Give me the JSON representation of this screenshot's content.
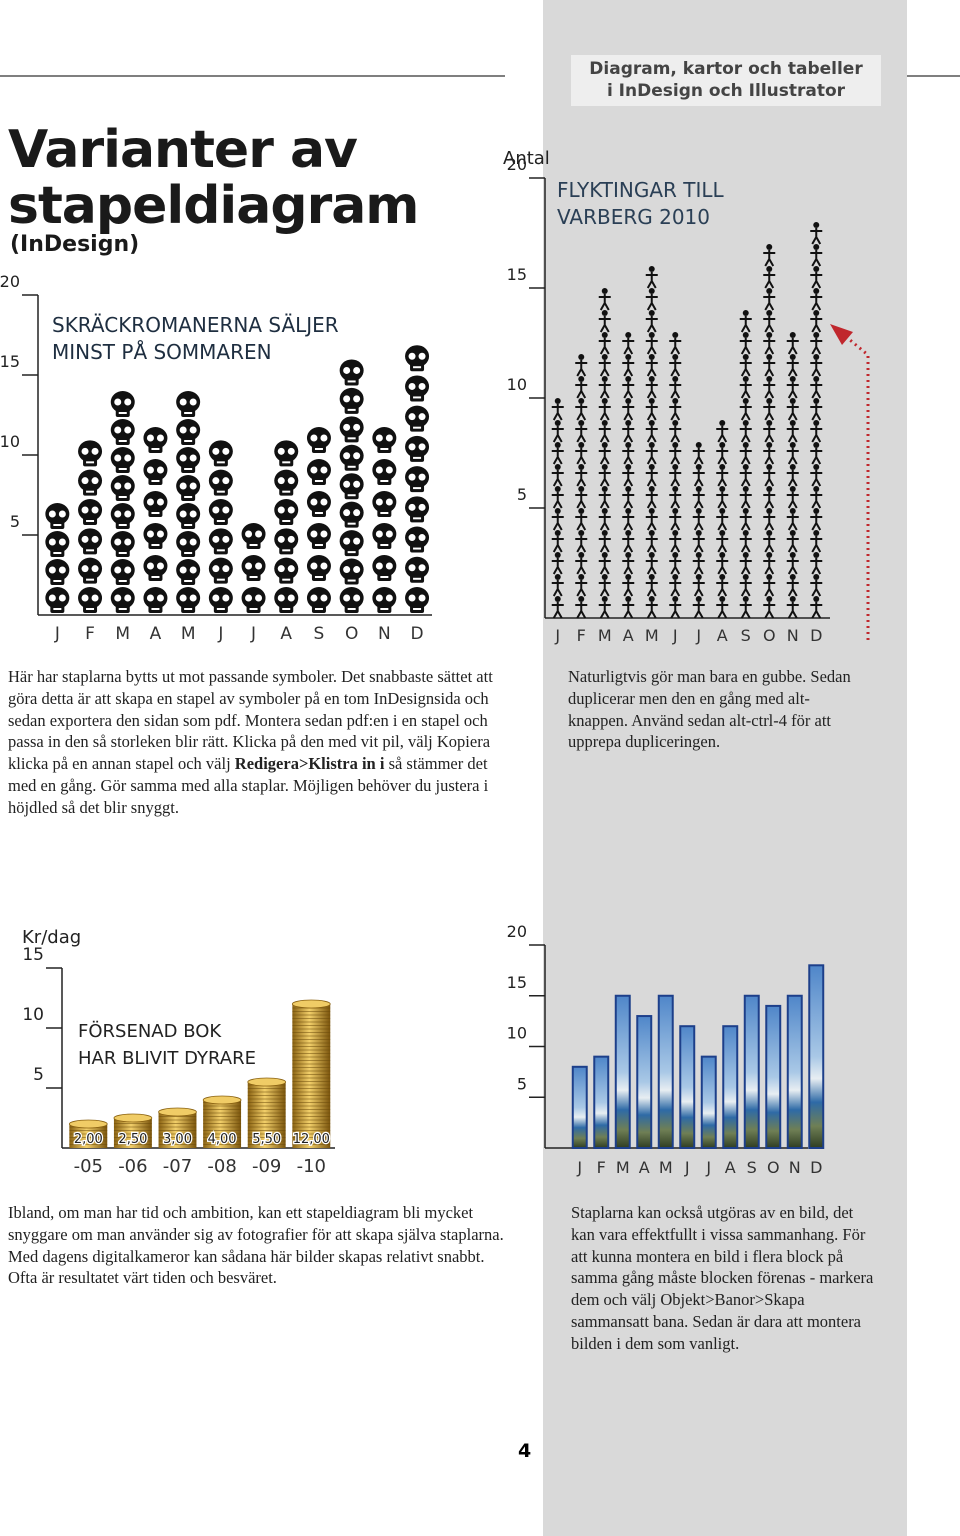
{
  "header": {
    "lines": [
      "Diagram, kartor och tabeller",
      "i InDesign och Illustrator"
    ]
  },
  "title": {
    "lines": [
      "Varianter av",
      "stapeldiagram"
    ],
    "subtitle": "(InDesign)"
  },
  "chart_data": [
    {
      "type": "bar",
      "title": [
        "SKRÄCKROMANERNA SÄLJER",
        "MINST PÅ SOMMAREN"
      ],
      "categories": [
        "J",
        "F",
        "M",
        "A",
        "M",
        "J",
        "J",
        "A",
        "S",
        "O",
        "N",
        "D"
      ],
      "values": [
        7,
        11,
        14,
        12,
        14,
        11,
        6,
        11,
        12,
        16,
        12,
        17
      ],
      "color": "#111111",
      "ylim": [
        0,
        20
      ],
      "yticks": [
        5,
        10,
        15,
        20
      ]
    },
    {
      "type": "bar",
      "ylabel": "Antal",
      "title": [
        "FLYKTINGAR TILL",
        "VARBERG 2010"
      ],
      "categories": [
        "J",
        "F",
        "M",
        "A",
        "M",
        "J",
        "J",
        "A",
        "S",
        "O",
        "N",
        "D"
      ],
      "values": [
        10,
        12,
        15,
        13,
        16,
        13,
        8,
        9,
        14,
        17,
        13,
        18
      ],
      "color": "#111111",
      "ylim": [
        0,
        20
      ],
      "yticks": [
        5,
        10,
        15,
        20
      ]
    },
    {
      "type": "bar",
      "ylabel": "Kr/dag",
      "title": [
        "FÖRSENAD BOK",
        "HAR BLIVIT DYRARE"
      ],
      "categories": [
        "-05",
        "-06",
        "-07",
        "-08",
        "-09",
        "-10"
      ],
      "values": [
        2,
        2.5,
        3,
        4,
        5.5,
        12
      ],
      "value_labels": [
        "2,00",
        "2,50",
        "3,00",
        "4,00",
        "5,50",
        "12,00"
      ],
      "color": "#d4a83a",
      "ylim": [
        0,
        15
      ],
      "yticks": [
        5,
        10,
        15
      ]
    },
    {
      "type": "bar",
      "categories": [
        "J",
        "F",
        "M",
        "A",
        "M",
        "J",
        "J",
        "A",
        "S",
        "O",
        "N",
        "D"
      ],
      "values": [
        8,
        9,
        15,
        13,
        15,
        12,
        9,
        12,
        15,
        14,
        15,
        18
      ],
      "color": "#1d3f8a",
      "ylim": [
        0,
        20
      ],
      "yticks": [
        5,
        10,
        15,
        20
      ]
    }
  ],
  "text": {
    "p1": [
      "Här har staplarna bytts ut mot passande symboler. Det snabbaste sättet att göra detta är att skapa en stapel av symboler på en tom InDesignsida och sedan exportera den sidan som pdf. Montera sedan pdf:en i en stapel och passa in den så storleken blir rätt. Klicka på den med vit pil, välj Kopiera klicka på en annan stapel och välj ",
      "Redigera>Klistra in i",
      " så stämmer det med en gång. Gör samma med alla staplar. Möjligen behöver du justera i höjdled så det blir snyggt."
    ],
    "p2": "Naturligtvis gör man bara en gubbe. Sedan duplicerar men den en gång med alt-knappen. Använd sedan alt-ctrl-4 för att upprepa dupliceringen.",
    "p3": "Ibland, om man har tid och ambition, kan ett stapeldiagram bli mycket snyggare om man använder sig av fotografier för att skapa själva staplarna. Med dagens digitalkameror kan sådana här bilder skapas relativt snabbt. Ofta är resultatet värt tiden och besväret.",
    "p4": "Staplarna kan också utgöras av en bild, det kan vara effektfullt i vissa sammanhang. För att kunna montera en bild i flera block på samma gång måste blocken förenas - markera dem och välj Objekt>Banor>Skapa sammansatt bana. Sedan är dara att montera bilden i dem som vanligt."
  },
  "page_number": "4"
}
